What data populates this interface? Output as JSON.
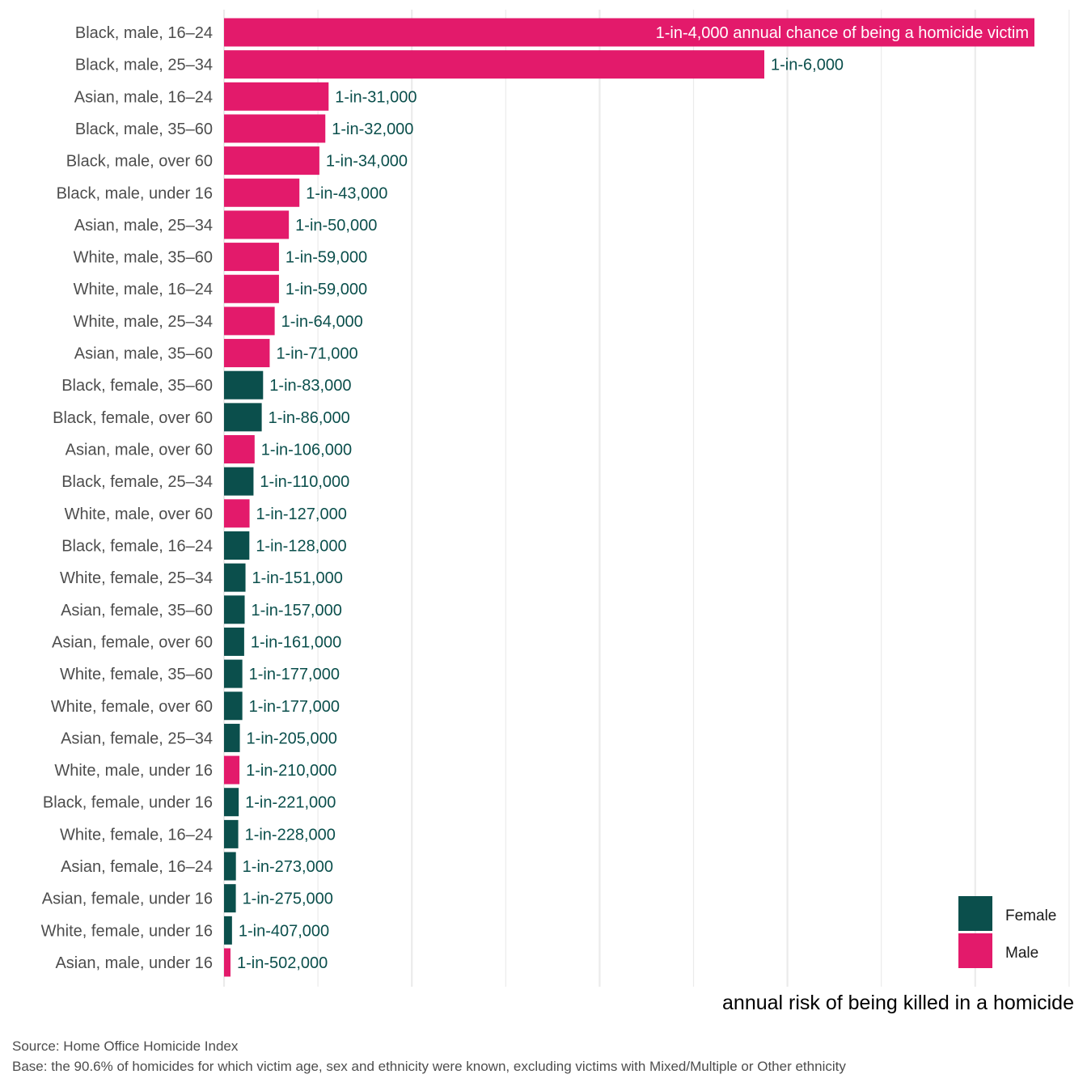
{
  "chart_data": {
    "type": "bar",
    "orientation": "horizontal",
    "xlabel": "annual risk of being killed in a homicide",
    "ylabel": "",
    "value_meaning": "annual risk = 1 / N",
    "grid": "vertical gridlines, no tick labels",
    "legend_placement": "bottom-right",
    "legend": [
      {
        "name": "Female",
        "color": "#0b4f4c"
      },
      {
        "name": "Male",
        "color": "#e31a6b"
      }
    ],
    "bars": [
      {
        "category": "Black, male, 16–24",
        "sex": "Male",
        "one_in": 4000,
        "label": "1-in-4,000 annual chance of being a homicide victim"
      },
      {
        "category": "Black, male, 25–34",
        "sex": "Male",
        "one_in": 6000,
        "label": "1-in-6,000"
      },
      {
        "category": "Asian, male, 16–24",
        "sex": "Male",
        "one_in": 31000,
        "label": "1-in-31,000"
      },
      {
        "category": "Black, male, 35–60",
        "sex": "Male",
        "one_in": 32000,
        "label": "1-in-32,000"
      },
      {
        "category": "Black, male, over 60",
        "sex": "Male",
        "one_in": 34000,
        "label": "1-in-34,000"
      },
      {
        "category": "Black, male, under 16",
        "sex": "Male",
        "one_in": 43000,
        "label": "1-in-43,000"
      },
      {
        "category": "Asian, male, 25–34",
        "sex": "Male",
        "one_in": 50000,
        "label": "1-in-50,000"
      },
      {
        "category": "White, male, 35–60",
        "sex": "Male",
        "one_in": 59000,
        "label": "1-in-59,000"
      },
      {
        "category": "White, male, 16–24",
        "sex": "Male",
        "one_in": 59000,
        "label": "1-in-59,000"
      },
      {
        "category": "White, male, 25–34",
        "sex": "Male",
        "one_in": 64000,
        "label": "1-in-64,000"
      },
      {
        "category": "Asian, male, 35–60",
        "sex": "Male",
        "one_in": 71000,
        "label": "1-in-71,000"
      },
      {
        "category": "Black, female, 35–60",
        "sex": "Female",
        "one_in": 83000,
        "label": "1-in-83,000"
      },
      {
        "category": "Black, female, over 60",
        "sex": "Female",
        "one_in": 86000,
        "label": "1-in-86,000"
      },
      {
        "category": "Asian, male, over 60",
        "sex": "Male",
        "one_in": 106000,
        "label": "1-in-106,000"
      },
      {
        "category": "Black, female, 25–34",
        "sex": "Female",
        "one_in": 110000,
        "label": "1-in-110,000"
      },
      {
        "category": "White, male, over 60",
        "sex": "Male",
        "one_in": 127000,
        "label": "1-in-127,000"
      },
      {
        "category": "Black, female, 16–24",
        "sex": "Female",
        "one_in": 128000,
        "label": "1-in-128,000"
      },
      {
        "category": "White, female, 25–34",
        "sex": "Female",
        "one_in": 151000,
        "label": "1-in-151,000"
      },
      {
        "category": "Asian, female, 35–60",
        "sex": "Female",
        "one_in": 157000,
        "label": "1-in-157,000"
      },
      {
        "category": "Asian, female, over 60",
        "sex": "Female",
        "one_in": 161000,
        "label": "1-in-161,000"
      },
      {
        "category": "White, female, 35–60",
        "sex": "Female",
        "one_in": 177000,
        "label": "1-in-177,000"
      },
      {
        "category": "White, female, over 60",
        "sex": "Female",
        "one_in": 177000,
        "label": "1-in-177,000"
      },
      {
        "category": "Asian, female, 25–34",
        "sex": "Female",
        "one_in": 205000,
        "label": "1-in-205,000"
      },
      {
        "category": "White, male, under 16",
        "sex": "Male",
        "one_in": 210000,
        "label": "1-in-210,000"
      },
      {
        "category": "Black, female, under 16",
        "sex": "Female",
        "one_in": 221000,
        "label": "1-in-221,000"
      },
      {
        "category": "White, female, 16–24",
        "sex": "Female",
        "one_in": 228000,
        "label": "1-in-228,000"
      },
      {
        "category": "Asian, female, 16–24",
        "sex": "Female",
        "one_in": 273000,
        "label": "1-in-273,000"
      },
      {
        "category": "Asian, female, under 16",
        "sex": "Female",
        "one_in": 275000,
        "label": "1-in-275,000"
      },
      {
        "category": "White, female, under 16",
        "sex": "Female",
        "one_in": 407000,
        "label": "1-in-407,000"
      },
      {
        "category": "Asian, male, under 16",
        "sex": "Male",
        "one_in": 502000,
        "label": "1-in-502,000"
      }
    ]
  },
  "caption": {
    "source": "Source: Home Office Homicide Index",
    "base": "Base: the 90.6% of homicides for which victim age, sex and ethnicity were known, excluding victims with Mixed/Multiple or Other ethnicity"
  }
}
